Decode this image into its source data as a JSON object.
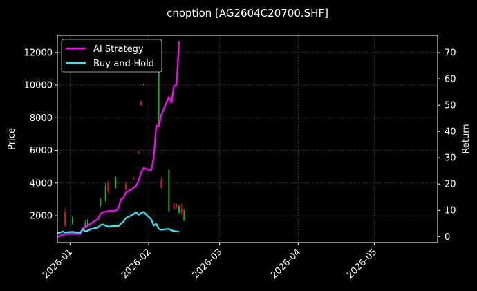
{
  "chart_data": {
    "type": "line",
    "title": "cnoption [AG2604C20700.SHF]",
    "xlabel": "",
    "ylabel": "Price",
    "y2label": "Return",
    "x_ticks": [
      "2026-01",
      "2026-02",
      "2026-03",
      "2026-04",
      "2026-05"
    ],
    "xlim": [
      "2025-12-27",
      "2026-05-26"
    ],
    "ylim": [
      350,
      13050
    ],
    "y_ticks": [
      2000,
      4000,
      6000,
      8000,
      10000,
      12000
    ],
    "y2lim": [
      -2.3,
      76.6
    ],
    "y2_ticks": [
      0,
      10,
      20,
      30,
      40,
      50,
      60,
      70
    ],
    "grid": true,
    "legend_position": "top-left",
    "colors": {
      "background": "#000000",
      "ai_strategy": "#ff00ff",
      "buy_and_hold": "#33e6f0",
      "candle_up": "#22aa22",
      "candle_down": "#dd1111"
    },
    "series": [
      {
        "name": "AI Strategy",
        "axis": "right",
        "x": [
          "2025-12-27",
          "2025-12-28",
          "2025-12-29",
          "2025-12-30",
          "2026-01-02",
          "2026-01-05",
          "2026-01-06",
          "2026-01-07",
          "2026-01-08",
          "2026-01-09",
          "2026-01-12",
          "2026-01-13",
          "2026-01-14",
          "2026-01-15",
          "2026-01-16",
          "2026-01-19",
          "2026-01-20",
          "2026-01-21",
          "2026-01-22",
          "2026-01-23",
          "2026-01-26",
          "2026-01-27",
          "2026-01-28",
          "2026-01-29",
          "2026-01-30",
          "2026-02-02",
          "2026-02-03",
          "2026-02-04",
          "2026-02-05",
          "2026-02-06",
          "2026-02-09",
          "2026-02-10",
          "2026-02-11",
          "2026-02-12",
          "2026-02-13"
        ],
        "values": [
          0.0,
          0.2,
          0.6,
          0.9,
          1.2,
          1.0,
          3.0,
          3.7,
          4.2,
          4.9,
          6.7,
          8.7,
          9.3,
          9.5,
          9.7,
          9.9,
          10.7,
          14.1,
          14.6,
          16.8,
          18.5,
          19.3,
          21.2,
          24.3,
          26.1,
          25.1,
          30.0,
          42.0,
          41.8,
          46.3,
          53.2,
          51.0,
          57.4,
          57.7,
          74.2
        ]
      },
      {
        "name": "Buy-and-Hold",
        "axis": "right",
        "x": [
          "2025-12-27",
          "2025-12-28",
          "2025-12-29",
          "2025-12-30",
          "2026-01-02",
          "2026-01-05",
          "2026-01-06",
          "2026-01-07",
          "2026-01-08",
          "2026-01-09",
          "2026-01-12",
          "2026-01-13",
          "2026-01-14",
          "2026-01-15",
          "2026-01-16",
          "2026-01-19",
          "2026-01-20",
          "2026-01-21",
          "2026-01-22",
          "2026-01-23",
          "2026-01-26",
          "2026-01-27",
          "2026-01-28",
          "2026-01-29",
          "2026-01-30",
          "2026-02-02",
          "2026-02-03",
          "2026-02-04",
          "2026-02-05",
          "2026-02-06",
          "2026-02-09",
          "2026-02-10",
          "2026-02-11",
          "2026-02-12",
          "2026-02-13"
        ],
        "values": [
          1.3,
          1.5,
          1.9,
          1.6,
          1.8,
          1.4,
          2.8,
          2.0,
          2.2,
          2.8,
          3.4,
          4.4,
          4.6,
          4.2,
          3.8,
          4.1,
          3.9,
          4.9,
          5.6,
          7.0,
          8.5,
          9.3,
          8.3,
          8.9,
          9.4,
          6.6,
          4.2,
          4.9,
          2.9,
          2.6,
          2.9,
          2.4,
          2.1,
          2.0,
          1.8
        ]
      }
    ],
    "candles": [
      {
        "x": "2025-12-30",
        "open": 2200,
        "close": 1400,
        "high": 2500,
        "low": 1300,
        "dir": "down"
      },
      {
        "x": "2026-01-02",
        "open": 1500,
        "close": 1900,
        "high": 2000,
        "low": 1450,
        "dir": "up"
      },
      {
        "x": "2026-01-07",
        "open": 1250,
        "close": 1600,
        "high": 1750,
        "low": 1200,
        "dir": "up"
      },
      {
        "x": "2026-01-08",
        "open": 1400,
        "close": 1750,
        "high": 1800,
        "low": 1350,
        "dir": "up"
      },
      {
        "x": "2026-01-13",
        "open": 2600,
        "close": 3000,
        "high": 3100,
        "low": 2550,
        "dir": "up"
      },
      {
        "x": "2026-01-15",
        "open": 2900,
        "close": 3800,
        "high": 4000,
        "low": 2850,
        "dir": "up"
      },
      {
        "x": "2026-01-16",
        "open": 4000,
        "close": 3500,
        "high": 4150,
        "low": 3400,
        "dir": "down"
      },
      {
        "x": "2026-01-19",
        "open": 3700,
        "close": 4350,
        "high": 4450,
        "low": 3650,
        "dir": "up"
      },
      {
        "x": "2026-01-23",
        "open": 3950,
        "close": 3600,
        "high": 4050,
        "low": 3550,
        "dir": "down"
      },
      {
        "x": "2026-01-26",
        "open": 4350,
        "close": 4200,
        "high": 4400,
        "low": 4150,
        "dir": "down"
      },
      {
        "x": "2026-01-28",
        "open": 5900,
        "close": 5850,
        "high": 5950,
        "low": 5800,
        "dir": "down"
      },
      {
        "x": "2026-01-29",
        "open": 9000,
        "close": 8800,
        "high": 9100,
        "low": 8700,
        "dir": "down"
      },
      {
        "x": "2026-01-30",
        "open": 10050,
        "close": 10000,
        "high": 10100,
        "low": 9950,
        "dir": "down"
      },
      {
        "x": "2026-02-04",
        "open": 7600,
        "close": 7500,
        "high": 7650,
        "low": 7450,
        "dir": "down"
      },
      {
        "x": "2026-02-05",
        "open": 7600,
        "close": 10900,
        "high": 11000,
        "low": 7500,
        "dir": "up"
      },
      {
        "x": "2026-02-06",
        "open": 4200,
        "close": 3700,
        "high": 4400,
        "low": 3600,
        "dir": "down"
      },
      {
        "x": "2026-02-09",
        "open": 2300,
        "close": 4800,
        "high": 4850,
        "low": 2200,
        "dir": "up"
      },
      {
        "x": "2026-02-11",
        "open": 2750,
        "close": 2400,
        "high": 2800,
        "low": 2350,
        "dir": "down"
      },
      {
        "x": "2026-02-12",
        "open": 2700,
        "close": 2500,
        "high": 2750,
        "low": 2450,
        "dir": "down"
      },
      {
        "x": "2026-02-13",
        "open": 2200,
        "close": 2600,
        "high": 2700,
        "low": 2100,
        "dir": "up"
      },
      {
        "x": "2026-02-14",
        "open": 2400,
        "close": 2200,
        "high": 2750,
        "low": 2050,
        "dir": "down"
      },
      {
        "x": "2026-02-15",
        "open": 1700,
        "close": 2300,
        "high": 2400,
        "low": 1650,
        "dir": "up"
      }
    ]
  }
}
